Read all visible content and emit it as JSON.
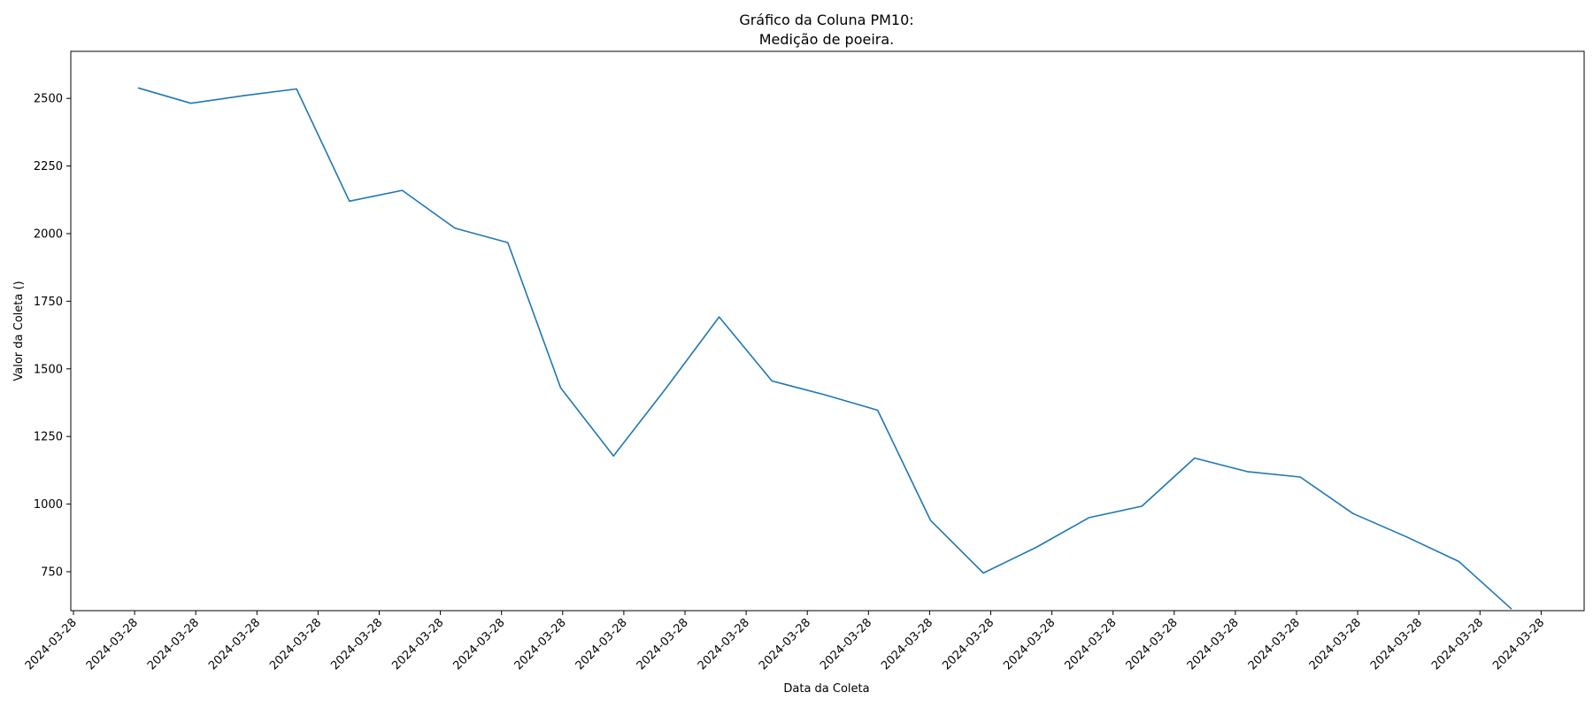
{
  "chart_data": {
    "type": "line",
    "title_line1": "Gráfico da Coluna PM10:",
    "title_line2": "Medição de poeira.",
    "xlabel": "Data da Coleta",
    "ylabel": "Valor da Coleta ()",
    "ylim": [
      606,
      2674
    ],
    "yticks": [
      750,
      1000,
      1250,
      1500,
      1750,
      2000,
      2250,
      2500
    ],
    "xtick_labels": [
      "2024-03-28",
      "2024-03-28",
      "2024-03-28",
      "2024-03-28",
      "2024-03-28",
      "2024-03-28",
      "2024-03-28",
      "2024-03-28",
      "2024-03-28",
      "2024-03-28",
      "2024-03-28",
      "2024-03-28",
      "2024-03-28",
      "2024-03-28",
      "2024-03-28",
      "2024-03-28",
      "2024-03-28",
      "2024-03-28",
      "2024-03-28",
      "2024-03-28",
      "2024-03-28",
      "2024-03-28",
      "2024-03-28",
      "2024-03-28",
      "2024-03-28"
    ],
    "series": [
      {
        "color": "#1f77b4",
        "values": [
          2539,
          2482,
          2510,
          2535,
          2120,
          2160,
          2020,
          1967,
          1430,
          1178,
          1430,
          1692,
          1455,
          1404,
          1347,
          940,
          745,
          840,
          950,
          992,
          1170,
          1120,
          1100,
          965,
          880,
          788,
          612
        ]
      }
    ]
  }
}
